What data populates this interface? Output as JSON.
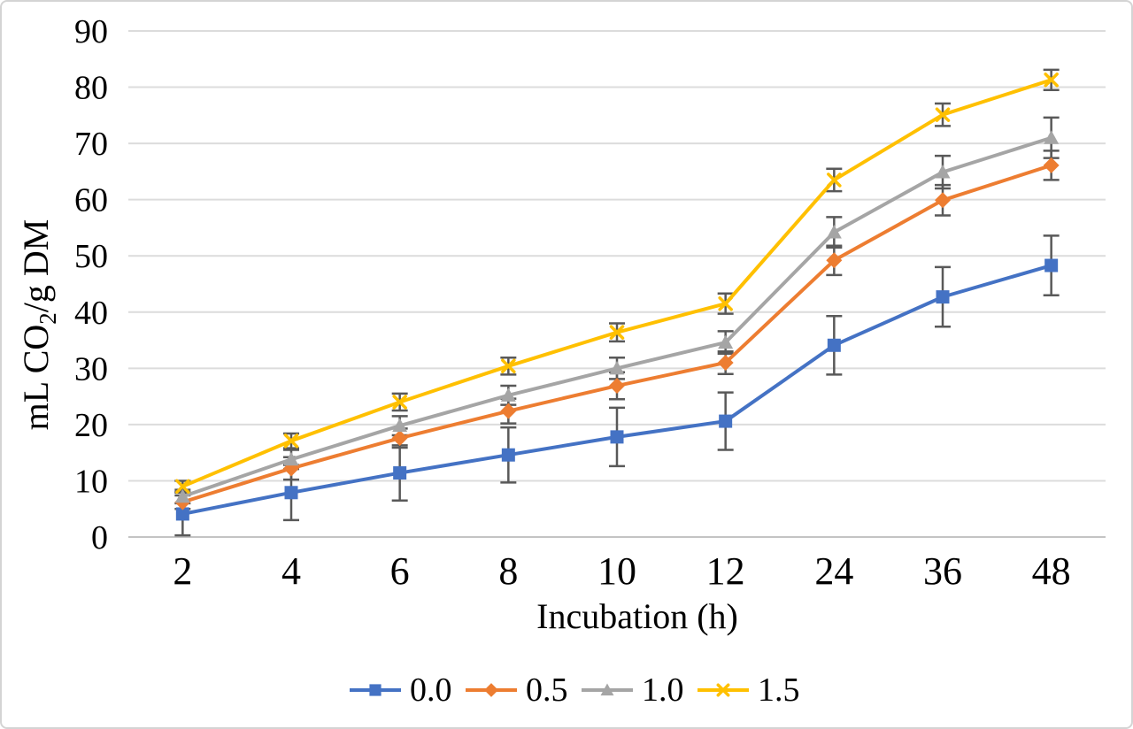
{
  "figure": {
    "background": "#ffffff",
    "border_color": "#d4d4d4"
  },
  "chart_data": {
    "type": "line",
    "title": "",
    "xlabel": "Incubation (h)",
    "ylabel": "mL CO2/g DM",
    "ylabel_rich": [
      {
        "text": "mL CO",
        "sub": false
      },
      {
        "text": "2",
        "sub": true
      },
      {
        "text": "/g DM",
        "sub": false
      }
    ],
    "categories": [
      "2",
      "4",
      "6",
      "8",
      "10",
      "12",
      "24",
      "36",
      "48"
    ],
    "ylim": [
      0,
      90
    ],
    "yticks": [
      0,
      10,
      20,
      30,
      40,
      50,
      60,
      70,
      80,
      90
    ],
    "grid": "horizontal",
    "legend_position": "bottom",
    "colors": {
      "gridline": "#dcdcdc",
      "axis_line": "#c4c4c4",
      "error_bar": "#595959",
      "text": "#000000"
    },
    "series": [
      {
        "name": "0.0",
        "color": "#4472C4",
        "marker": "square",
        "values": [
          4.1,
          7.9,
          11.4,
          14.6,
          17.8,
          20.6,
          34.1,
          42.7,
          48.3
        ],
        "errors": [
          3.8,
          4.9,
          4.9,
          4.9,
          5.2,
          5.1,
          5.2,
          5.3,
          5.3
        ]
      },
      {
        "name": "0.5",
        "color": "#ED7D31",
        "marker": "diamond",
        "values": [
          6.2,
          12.2,
          17.6,
          22.4,
          26.9,
          31.0,
          49.2,
          59.9,
          66.1
        ],
        "errors": [
          1.2,
          2.0,
          1.7,
          2.2,
          2.4,
          2.0,
          2.6,
          2.7,
          2.6
        ]
      },
      {
        "name": "1.0",
        "color": "#A5A5A5",
        "marker": "triangle",
        "values": [
          7.2,
          13.8,
          19.8,
          25.2,
          30.0,
          34.6,
          54.2,
          64.9,
          71.0
        ],
        "errors": [
          1.2,
          1.7,
          1.7,
          1.7,
          1.9,
          2.0,
          2.7,
          2.9,
          3.6
        ]
      },
      {
        "name": "1.5",
        "color": "#FFC000",
        "marker": "x",
        "values": [
          9.0,
          17.1,
          24.0,
          30.4,
          36.4,
          41.5,
          63.5,
          75.1,
          81.3
        ],
        "errors": [
          1.0,
          1.3,
          1.5,
          1.5,
          1.6,
          1.8,
          2.0,
          2.0,
          1.8
        ]
      }
    ]
  }
}
